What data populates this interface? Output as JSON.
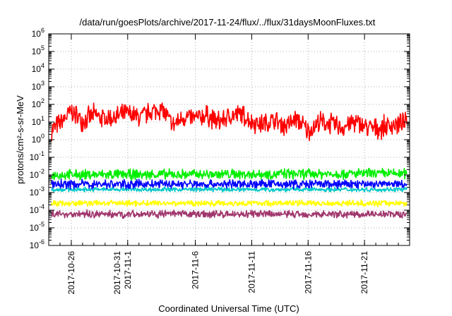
{
  "chart_data": {
    "type": "line",
    "title": "/data/run/goesPlots/archive/2017-11-24/flux/../flux/31daysMoonFluxes.txt",
    "xlabel": "Coordinated Universal Time (UTC)",
    "ylabel": "protons/cm²-s-sr-MeV",
    "yscale": "log",
    "ylim": [
      1e-06,
      1000000.0
    ],
    "xlim": [
      "2017-10-24",
      "2017-11-25"
    ],
    "grid": true,
    "legend": "none",
    "y_ticks": [
      {
        "base": "10",
        "exp": "-6"
      },
      {
        "base": "10",
        "exp": "-5"
      },
      {
        "base": "10",
        "exp": "-4"
      },
      {
        "base": "10",
        "exp": "-3"
      },
      {
        "base": "10",
        "exp": "-2"
      },
      {
        "base": "10",
        "exp": "-1"
      },
      {
        "base": "10",
        "exp": "0"
      },
      {
        "base": "10",
        "exp": "1"
      },
      {
        "base": "10",
        "exp": "2"
      },
      {
        "base": "10",
        "exp": "3"
      },
      {
        "base": "10",
        "exp": "4"
      },
      {
        "base": "10",
        "exp": "5"
      },
      {
        "base": "10",
        "exp": "6"
      }
    ],
    "x_ticks": [
      {
        "date": "2017-10-26",
        "lines": [
          "2017-10-26"
        ]
      },
      {
        "date": "2017-10-31",
        "lines": [
          "2017-10-31",
          "2017-11-1"
        ]
      },
      {
        "date": "2017-11-06",
        "lines": [
          "2017-11-6"
        ]
      },
      {
        "date": "2017-11-11",
        "lines": [
          "2017-11-11"
        ]
      },
      {
        "date": "2017-11-16",
        "lines": [
          "2017-11-16"
        ]
      },
      {
        "date": "2017-11-21",
        "lines": [
          "2017-11-21"
        ]
      }
    ],
    "series": [
      {
        "color": "#ff0000",
        "median": 8,
        "spread_decades": 0.7,
        "x": [
          "2017-10-24",
          "2017-10-25",
          "2017-10-26",
          "2017-10-27",
          "2017-10-28",
          "2017-10-29",
          "2017-10-30",
          "2017-10-31",
          "2017-11-01",
          "2017-11-02",
          "2017-11-03",
          "2017-11-04",
          "2017-11-05",
          "2017-11-06",
          "2017-11-07",
          "2017-11-08",
          "2017-11-09",
          "2017-11-10",
          "2017-11-11",
          "2017-11-12",
          "2017-11-13",
          "2017-11-14",
          "2017-11-15",
          "2017-11-16",
          "2017-11-17",
          "2017-11-18",
          "2017-11-19",
          "2017-11-20",
          "2017-11-21",
          "2017-11-22",
          "2017-11-23",
          "2017-11-24"
        ],
        "y": [
          3,
          8,
          40,
          12,
          25,
          15,
          20,
          30,
          18,
          35,
          60,
          6,
          20,
          15,
          25,
          10,
          20,
          30,
          10,
          8,
          12,
          6,
          15,
          3,
          10,
          8,
          5,
          10,
          6,
          4,
          6,
          8
        ]
      },
      {
        "color": "#00ee00",
        "median": 0.012,
        "spread_decades": 0.35,
        "x": [
          "2017-10-24",
          "2017-11-24"
        ],
        "y": [
          0.01,
          0.012
        ]
      },
      {
        "color": "#00c8c8",
        "median": 0.0015,
        "spread_decades": 0.15,
        "x": [
          "2017-10-24",
          "2017-11-24"
        ],
        "y": [
          0.0015,
          0.0015
        ]
      },
      {
        "color": "#0000ff",
        "median": 0.003,
        "spread_decades": 0.3,
        "x": [
          "2017-10-24",
          "2017-11-24"
        ],
        "y": [
          0.003,
          0.003
        ]
      },
      {
        "color": "#ffff00",
        "median": 0.00025,
        "spread_decades": 0.2,
        "x": [
          "2017-10-24",
          "2017-11-24"
        ],
        "y": [
          0.00025,
          0.00025
        ]
      },
      {
        "color": "#a0366d",
        "median": 6e-05,
        "spread_decades": 0.25,
        "x": [
          "2017-10-24",
          "2017-11-24"
        ],
        "y": [
          6e-05,
          6e-05
        ]
      }
    ]
  }
}
